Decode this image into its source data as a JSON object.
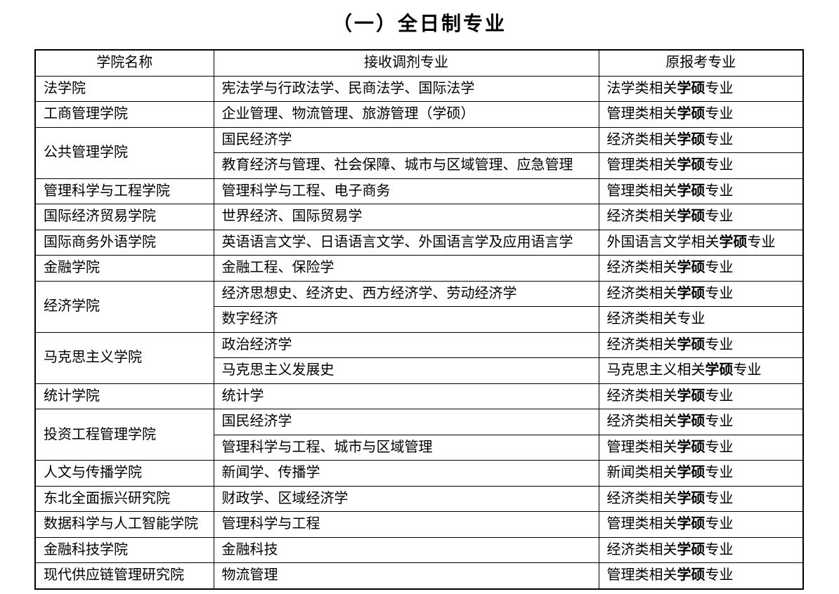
{
  "page": {
    "title": "（一）全日制专业"
  },
  "table": {
    "headers": [
      "学院名称",
      "接收调剂专业",
      "原报考专业"
    ],
    "groups": [
      {
        "college": "法学院",
        "rows": [
          {
            "majors": "宪法学与行政法学、民商法学、国际法学",
            "original": {
              "pre": "法学类相关",
              "bold": "学硕",
              "post": "专业"
            }
          }
        ]
      },
      {
        "college": "工商管理学院",
        "rows": [
          {
            "majors": "企业管理、物流管理、旅游管理（学硕）",
            "original": {
              "pre": "管理类相关",
              "bold": "学硕",
              "post": "专业"
            }
          }
        ]
      },
      {
        "college": "公共管理学院",
        "rows": [
          {
            "majors": "国民经济学",
            "original": {
              "pre": "经济类相关",
              "bold": "学硕",
              "post": "专业"
            }
          },
          {
            "majors": "教育经济与管理、社会保障、城市与区域管理、应急管理",
            "original": {
              "pre": "管理类相关",
              "bold": "学硕",
              "post": "专业"
            }
          }
        ]
      },
      {
        "college": "管理科学与工程学院",
        "rows": [
          {
            "majors": "管理科学与工程、电子商务",
            "original": {
              "pre": "管理类相关",
              "bold": "学硕",
              "post": "专业"
            }
          }
        ]
      },
      {
        "college": "国际经济贸易学院",
        "rows": [
          {
            "majors": "世界经济、国际贸易学",
            "original": {
              "pre": "经济类相关",
              "bold": "学硕",
              "post": "专业"
            }
          }
        ]
      },
      {
        "college": "国际商务外语学院",
        "rows": [
          {
            "majors": "英语语言文学、日语语言文学、外国语言学及应用语言学",
            "original": {
              "pre": "外国语言文学相关",
              "bold": "学硕",
              "post": "专业"
            }
          }
        ]
      },
      {
        "college": "金融学院",
        "rows": [
          {
            "majors": "金融工程、保险学",
            "original": {
              "pre": "经济类相关",
              "bold": "学硕",
              "post": "专业"
            }
          }
        ]
      },
      {
        "college": "经济学院",
        "rows": [
          {
            "majors": "经济思想史、经济史、西方经济学、劳动经济学",
            "original": {
              "pre": "经济类相关",
              "bold": "学硕",
              "post": "专业"
            }
          },
          {
            "majors": "数字经济",
            "original": {
              "pre": "经济类相关专业",
              "bold": "",
              "post": ""
            }
          }
        ]
      },
      {
        "college": "马克思主义学院",
        "rows": [
          {
            "majors": "政治经济学",
            "original": {
              "pre": "经济类相关",
              "bold": "学硕",
              "post": "专业"
            }
          },
          {
            "majors": "马克思主义发展史",
            "original": {
              "pre": "马克思主义相关",
              "bold": "学硕",
              "post": "专业"
            }
          }
        ]
      },
      {
        "college": "统计学院",
        "rows": [
          {
            "majors": "统计学",
            "original": {
              "pre": "经济类相关",
              "bold": "学硕",
              "post": "专业"
            }
          }
        ]
      },
      {
        "college": "投资工程管理学院",
        "rows": [
          {
            "majors": "国民经济学",
            "original": {
              "pre": "经济类相关",
              "bold": "学硕",
              "post": "专业"
            }
          },
          {
            "majors": "管理科学与工程、城市与区域管理",
            "original": {
              "pre": "管理类相关",
              "bold": "学硕",
              "post": "专业"
            }
          }
        ]
      },
      {
        "college": "人文与传播学院",
        "rows": [
          {
            "majors": "新闻学、传播学",
            "original": {
              "pre": "新闻类相关",
              "bold": "学硕",
              "post": "专业"
            }
          }
        ]
      },
      {
        "college": "东北全面振兴研究院",
        "rows": [
          {
            "majors": "财政学、区域经济学",
            "original": {
              "pre": "经济类相关",
              "bold": "学硕",
              "post": "专业"
            }
          }
        ]
      },
      {
        "college": "数据科学与人工智能学院",
        "rows": [
          {
            "majors": "管理科学与工程",
            "original": {
              "pre": "管理类相关",
              "bold": "学硕",
              "post": "专业"
            }
          }
        ]
      },
      {
        "college": "金融科技学院",
        "rows": [
          {
            "majors": "金融科技",
            "original": {
              "pre": "经济类相关",
              "bold": "学硕",
              "post": "专业"
            }
          }
        ]
      },
      {
        "college": "现代供应链管理研究院",
        "rows": [
          {
            "majors": "物流管理",
            "original": {
              "pre": "管理类相关",
              "bold": "学硕",
              "post": "专业"
            }
          }
        ]
      }
    ]
  }
}
